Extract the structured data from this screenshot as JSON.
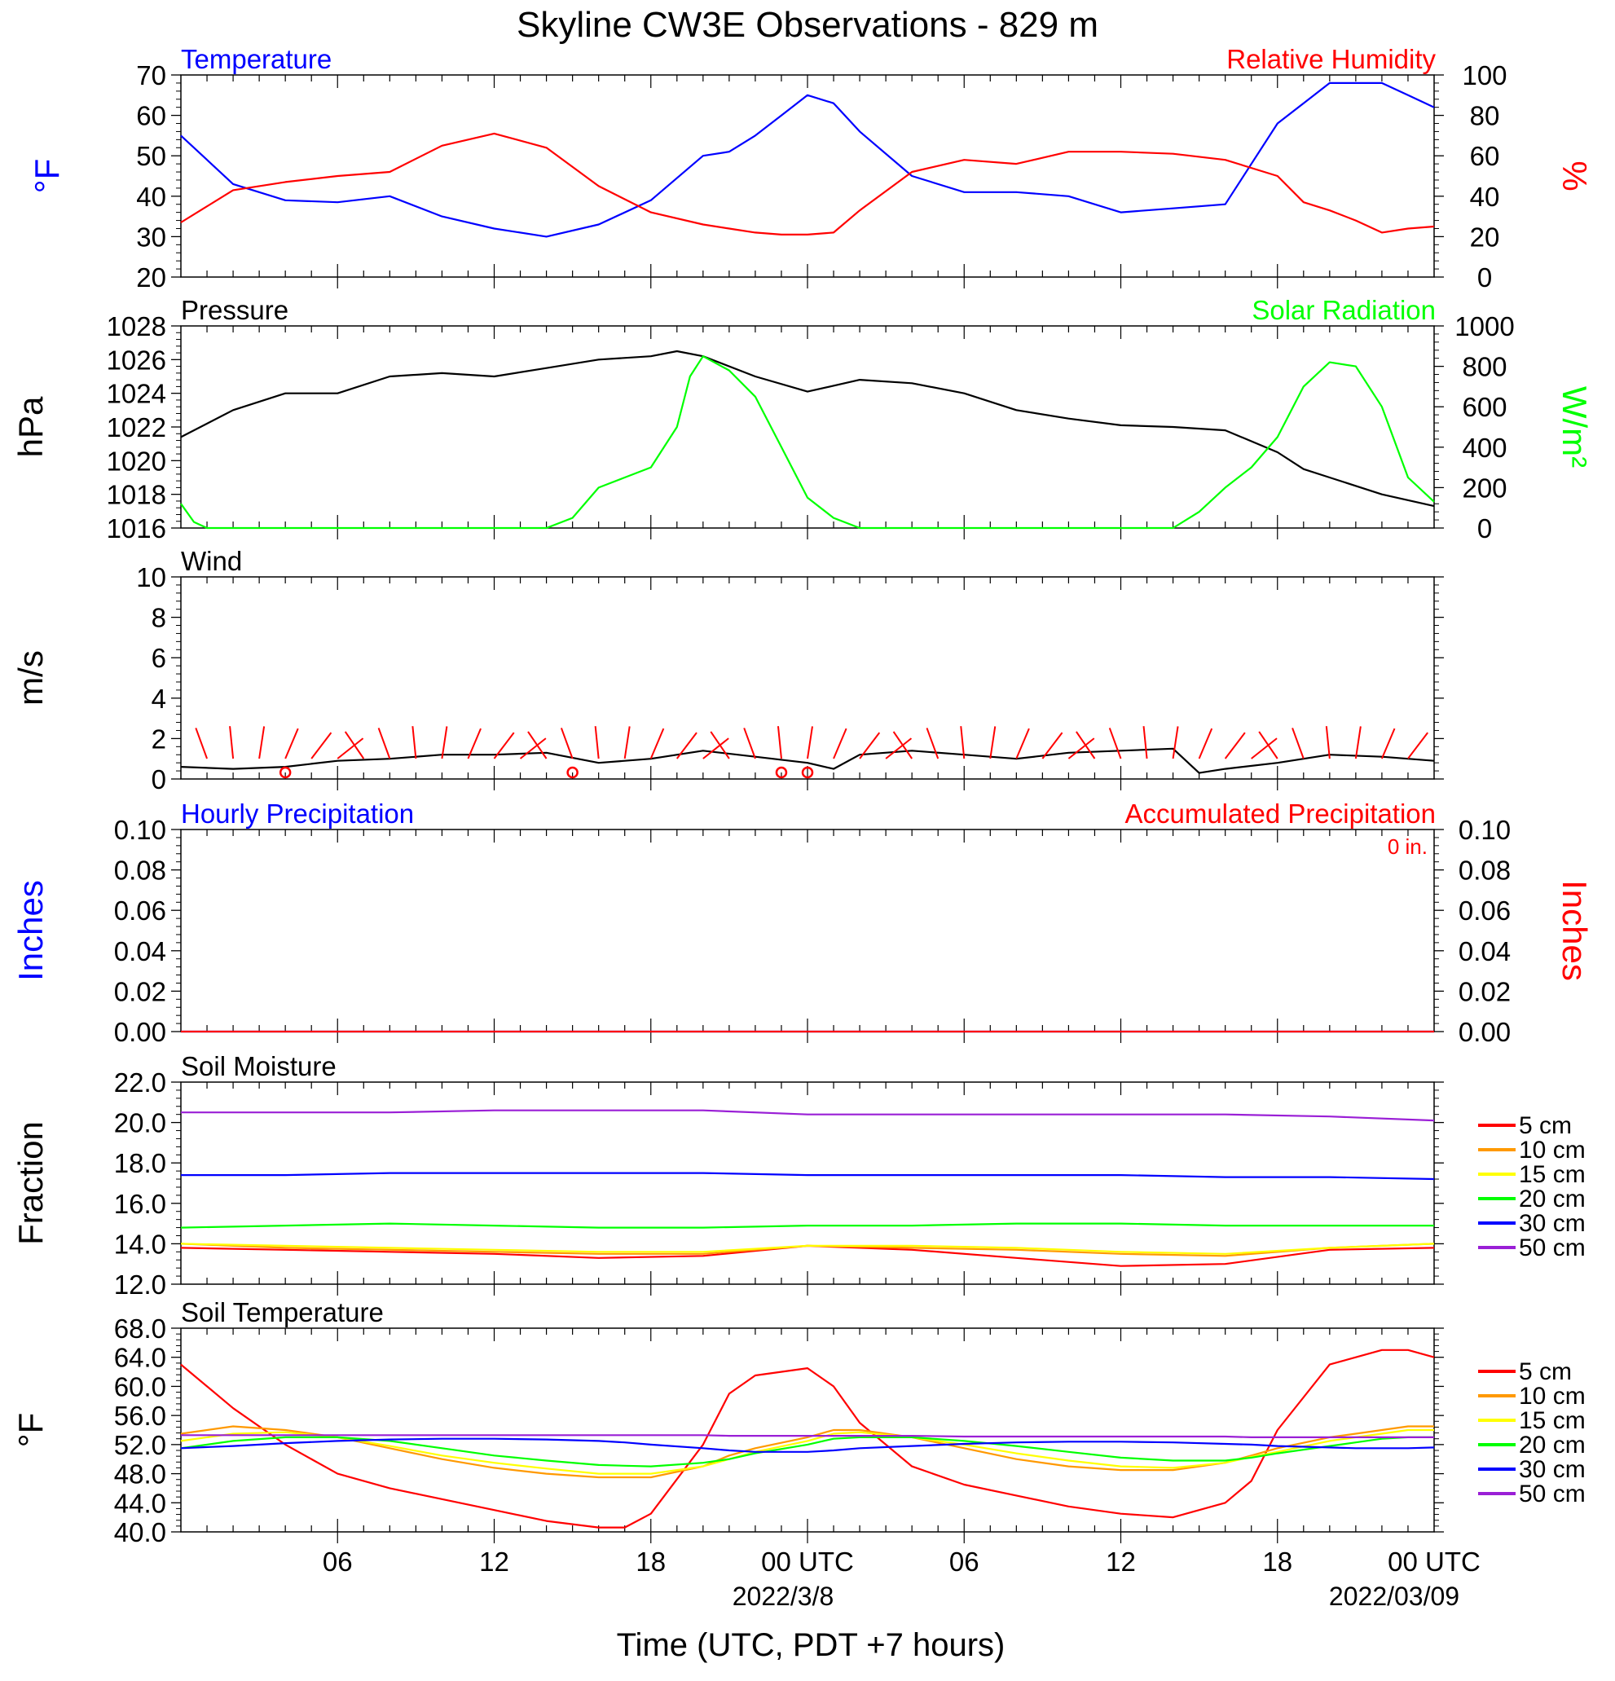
{
  "title": "Skyline CW3E Observations - 829 m",
  "x_axis": {
    "label": "Time (UTC, PDT +7 hours)",
    "ticks": [
      "06",
      "12",
      "18",
      "00 UTC",
      "06",
      "12",
      "18",
      "00 UTC"
    ],
    "dates": [
      "2022/3/8",
      "2022/03/09"
    ]
  },
  "colors": {
    "blue": "#0000ff",
    "red": "#ff0000",
    "green": "#00ff00",
    "black": "#000000",
    "orange": "#ff9900",
    "yellow": "#ffff00",
    "purple": "#9a1fd6"
  },
  "chart_data": [
    {
      "type": "line",
      "title_left": "Temperature",
      "title_right": "Relative Humidity",
      "ylabel_left": "°F",
      "ylabel_right": "%",
      "ylim_left": [
        20,
        70
      ],
      "ylim_right": [
        0,
        100
      ],
      "yticks_left": [
        "20",
        "30",
        "40",
        "50",
        "60",
        "70"
      ],
      "yticks_right": [
        "0",
        "20",
        "40",
        "60",
        "80",
        "100"
      ],
      "x_hours": [
        0,
        2,
        4,
        6,
        8,
        10,
        12,
        14,
        16,
        18,
        20,
        21,
        22,
        23,
        24,
        25,
        26,
        28,
        30,
        32,
        34,
        36,
        38,
        40,
        42,
        43,
        44,
        45,
        46,
        47,
        48
      ],
      "series": [
        {
          "name": "Temperature",
          "axis": "left",
          "color": "#0000ff",
          "values": [
            55,
            43,
            39,
            38.5,
            40,
            35,
            32,
            30,
            33,
            39,
            50,
            51,
            55,
            60,
            65,
            63,
            56,
            45,
            41,
            41,
            40,
            36,
            37,
            38,
            58,
            63,
            68,
            68,
            68,
            65,
            62
          ]
        },
        {
          "name": "Relative Humidity",
          "axis": "right",
          "color": "#ff0000",
          "values": [
            27,
            43,
            47,
            50,
            52,
            65,
            71,
            64,
            45,
            32,
            26,
            24,
            22,
            21,
            21,
            22,
            33,
            52,
            58,
            56,
            62,
            62,
            61,
            58,
            50,
            37,
            33,
            28,
            22,
            24,
            25
          ]
        }
      ]
    },
    {
      "type": "line",
      "title_left": "Pressure",
      "title_right": "Solar Radiation",
      "ylabel_left": "hPa",
      "ylabel_right": "W/m²",
      "ylim_left": [
        1016,
        1028
      ],
      "ylim_right": [
        0,
        1000
      ],
      "yticks_left": [
        "1016",
        "1018",
        "1020",
        "1022",
        "1024",
        "1026",
        "1028"
      ],
      "yticks_right": [
        "0",
        "200",
        "400",
        "600",
        "800",
        "1000"
      ],
      "series": [
        {
          "name": "Pressure",
          "axis": "left",
          "color": "#000000",
          "x_hours": [
            0,
            2,
            4,
            6,
            8,
            10,
            12,
            14,
            16,
            18,
            19,
            20,
            22,
            24,
            26,
            28,
            30,
            32,
            34,
            36,
            38,
            40,
            42,
            43,
            44,
            46,
            48
          ],
          "values": [
            1021.4,
            1023,
            1024,
            1024,
            1025,
            1025.2,
            1025,
            1025.5,
            1026,
            1026.2,
            1026.5,
            1026.2,
            1025,
            1024.1,
            1024.8,
            1024.6,
            1024.0,
            1023,
            1022.5,
            1022.1,
            1022.0,
            1021.8,
            1020.5,
            1019.5,
            1019,
            1018,
            1017.3
          ]
        },
        {
          "name": "Solar Radiation",
          "axis": "right",
          "color": "#00ff00",
          "x_hours": [
            0,
            0.5,
            1,
            14,
            15,
            16,
            17,
            18,
            19,
            19.5,
            20,
            21,
            22,
            23,
            24,
            25,
            26,
            38,
            39,
            40,
            41,
            42,
            43,
            44,
            45,
            46,
            47,
            48
          ],
          "values": [
            120,
            30,
            0,
            0,
            50,
            200,
            250,
            300,
            500,
            750,
            850,
            780,
            650,
            400,
            150,
            50,
            0,
            0,
            80,
            200,
            300,
            450,
            700,
            820,
            800,
            600,
            250,
            130
          ]
        }
      ]
    },
    {
      "type": "line",
      "title_left": "Wind",
      "ylabel_left": "m/s",
      "ylim_left": [
        0,
        10
      ],
      "yticks_left": [
        "0",
        "2",
        "4",
        "6",
        "8",
        "10"
      ],
      "series": [
        {
          "name": "Wind speed",
          "color": "#000000",
          "x_hours": [
            0,
            2,
            4,
            6,
            8,
            10,
            12,
            14,
            16,
            18,
            20,
            22,
            24,
            25,
            26,
            28,
            30,
            32,
            34,
            36,
            38,
            39,
            40,
            42,
            44,
            46,
            48
          ],
          "values": [
            0.6,
            0.5,
            0.6,
            0.9,
            1.0,
            1.2,
            1.2,
            1.3,
            0.8,
            1.0,
            1.4,
            1.1,
            0.8,
            0.5,
            1.2,
            1.4,
            1.2,
            1.0,
            1.3,
            1.4,
            1.5,
            0.3,
            0.5,
            0.8,
            1.2,
            1.1,
            0.9
          ]
        },
        {
          "name": "Wind barbs",
          "color": "#ff0000",
          "note_hours": [
            4,
            15,
            23,
            24
          ]
        }
      ]
    },
    {
      "type": "line",
      "title_left": "Hourly Precipitation",
      "title_right": "Accumulated Precipitation",
      "annotation": "0 in.",
      "ylabel_left": "Inches",
      "ylabel_right": "Inches",
      "ylim_left": [
        0,
        0.1
      ],
      "ylim_right": [
        0,
        0.1
      ],
      "yticks_left": [
        "0.00",
        "0.02",
        "0.04",
        "0.06",
        "0.08",
        "0.10"
      ],
      "yticks_right": [
        "0.00",
        "0.02",
        "0.04",
        "0.06",
        "0.08",
        "0.10"
      ],
      "series": [
        {
          "name": "Hourly Precipitation",
          "color": "#0000ff",
          "x_hours": [
            0,
            48
          ],
          "values": [
            0,
            0
          ]
        },
        {
          "name": "Accumulated Precipitation",
          "color": "#ff0000",
          "x_hours": [
            0,
            48
          ],
          "values": [
            0,
            0
          ]
        }
      ]
    },
    {
      "type": "line",
      "title_left": "Soil Moisture",
      "ylabel_left": "Fraction",
      "ylim_left": [
        12,
        22
      ],
      "yticks_left": [
        "12.0",
        "14.0",
        "16.0",
        "18.0",
        "20.0",
        "22.0"
      ],
      "x_hours": [
        0,
        4,
        8,
        12,
        16,
        20,
        24,
        28,
        32,
        36,
        40,
        44,
        48
      ],
      "series": [
        {
          "name": "5 cm",
          "color": "#ff0000",
          "values": [
            13.8,
            13.7,
            13.6,
            13.5,
            13.3,
            13.4,
            13.9,
            13.7,
            13.3,
            12.9,
            13.0,
            13.7,
            13.8
          ]
        },
        {
          "name": "10 cm",
          "color": "#ff9900",
          "values": [
            14.0,
            13.8,
            13.7,
            13.6,
            13.5,
            13.5,
            13.9,
            13.8,
            13.7,
            13.5,
            13.4,
            13.8,
            14.0
          ]
        },
        {
          "name": "15 cm",
          "color": "#ffff00",
          "values": [
            14.0,
            13.9,
            13.8,
            13.7,
            13.6,
            13.6,
            13.9,
            13.9,
            13.8,
            13.6,
            13.5,
            13.8,
            14.0
          ]
        },
        {
          "name": "20 cm",
          "color": "#00ff00",
          "values": [
            14.8,
            14.9,
            15.0,
            14.9,
            14.8,
            14.8,
            14.9,
            14.9,
            15.0,
            15.0,
            14.9,
            14.9,
            14.9
          ]
        },
        {
          "name": "30 cm",
          "color": "#0000ff",
          "values": [
            17.4,
            17.4,
            17.5,
            17.5,
            17.5,
            17.5,
            17.4,
            17.4,
            17.4,
            17.4,
            17.3,
            17.3,
            17.2
          ]
        },
        {
          "name": "50 cm",
          "color": "#9a1fd6",
          "values": [
            20.5,
            20.5,
            20.5,
            20.6,
            20.6,
            20.6,
            20.4,
            20.4,
            20.4,
            20.4,
            20.4,
            20.3,
            20.1
          ]
        }
      ]
    },
    {
      "type": "line",
      "title_left": "Soil Temperature",
      "ylabel_left": "°F",
      "ylim_left": [
        40,
        68
      ],
      "yticks_left": [
        "40.0",
        "44.0",
        "48.0",
        "52.0",
        "56.0",
        "60.0",
        "64.0",
        "68.0"
      ],
      "x_hours": [
        0,
        2,
        4,
        6,
        8,
        10,
        12,
        14,
        16,
        17,
        18,
        20,
        21,
        22,
        24,
        25,
        26,
        28,
        30,
        32,
        34,
        36,
        38,
        40,
        41,
        42,
        44,
        45,
        46,
        47,
        48
      ],
      "series": [
        {
          "name": "5 cm",
          "color": "#ff0000",
          "values": [
            63,
            57,
            52,
            48,
            46,
            44.5,
            43,
            41.5,
            40.6,
            40.6,
            42.5,
            52,
            59,
            61.5,
            62.5,
            60,
            55,
            49,
            46.5,
            45,
            43.5,
            42.5,
            42,
            44,
            47,
            54,
            63,
            64,
            65,
            65,
            64
          ]
        },
        {
          "name": "10 cm",
          "color": "#ff9900",
          "values": [
            53.5,
            54.5,
            54,
            53,
            51.5,
            50,
            48.8,
            48,
            47.5,
            47.5,
            47.5,
            49,
            50.5,
            51.5,
            53,
            54,
            54,
            53,
            51.5,
            50,
            49,
            48.5,
            48.5,
            49.5,
            50.5,
            51.5,
            53,
            53.5,
            54,
            54.5,
            54.5
          ]
        },
        {
          "name": "15 cm",
          "color": "#ffff00",
          "values": [
            52.5,
            53.5,
            53.7,
            53,
            51.8,
            50.5,
            49.5,
            48.7,
            48,
            48,
            48,
            49,
            50,
            51,
            52.5,
            53.5,
            53.7,
            53,
            52,
            50.8,
            49.8,
            49,
            48.8,
            49.5,
            50.3,
            51,
            52.5,
            53,
            53.5,
            54,
            54
          ]
        },
        {
          "name": "20 cm",
          "color": "#00ff00",
          "values": [
            51.5,
            52.5,
            53,
            53,
            52.5,
            51.5,
            50.5,
            49.8,
            49.2,
            49.1,
            49,
            49.5,
            50,
            50.8,
            52,
            52.8,
            53,
            53,
            52.5,
            51.8,
            51,
            50.2,
            49.8,
            49.8,
            50.2,
            50.8,
            51.8,
            52.3,
            52.8,
            53,
            53
          ]
        },
        {
          "name": "30 cm",
          "color": "#0000ff",
          "values": [
            51.5,
            51.8,
            52.2,
            52.5,
            52.7,
            52.8,
            52.8,
            52.7,
            52.5,
            52.3,
            52.0,
            51.5,
            51.2,
            51,
            51,
            51.2,
            51.5,
            51.8,
            52.1,
            52.3,
            52.4,
            52.4,
            52.3,
            52.1,
            52,
            51.8,
            51.6,
            51.5,
            51.5,
            51.5,
            51.6
          ]
        },
        {
          "name": "50 cm",
          "color": "#9a1fd6",
          "values": [
            53.3,
            53.3,
            53.3,
            53.3,
            53.3,
            53.3,
            53.3,
            53.3,
            53.3,
            53.3,
            53.3,
            53.3,
            53.2,
            53.2,
            53.2,
            53.2,
            53.2,
            53.2,
            53.1,
            53.1,
            53.1,
            53.1,
            53.1,
            53.1,
            53.0,
            53.0,
            53.0,
            53.0,
            53.0,
            53.0,
            53.0
          ]
        }
      ]
    }
  ]
}
